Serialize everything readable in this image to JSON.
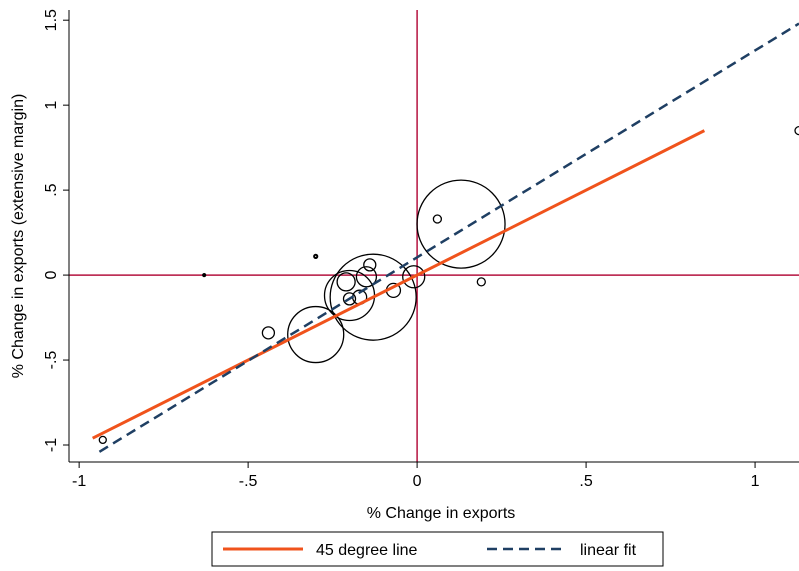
{
  "chart_data": {
    "type": "scatter",
    "xlabel": "% Change in exports",
    "ylabel": "% Change in exports (extensive margin)",
    "xlim": [
      -1.03,
      1.13
    ],
    "ylim": [
      -1.1,
      1.56
    ],
    "x_ticks": [
      {
        "value": -1,
        "label": "-1"
      },
      {
        "value": -0.5,
        "label": "-.5"
      },
      {
        "value": 0,
        "label": "0"
      },
      {
        "value": 0.5,
        "label": ".5"
      },
      {
        "value": 1,
        "label": "1"
      }
    ],
    "y_ticks": [
      {
        "value": -1,
        "label": "-1"
      },
      {
        "value": -0.5,
        "label": "-.5"
      },
      {
        "value": 0,
        "label": "0"
      },
      {
        "value": 0.5,
        "label": ".5"
      },
      {
        "value": 1,
        "label": "1"
      },
      {
        "value": 1.5,
        "label": "1.5"
      }
    ],
    "reference_lines": {
      "x": 0,
      "y": 0,
      "color": "#b5123f"
    },
    "points_note": "marker radius = relative weight (proportional circle size)",
    "points": [
      {
        "x": 0.13,
        "y": 0.3,
        "weight": 44
      },
      {
        "x": -0.13,
        "y": -0.13,
        "weight": 43
      },
      {
        "x": -0.3,
        "y": -0.35,
        "weight": 28
      },
      {
        "x": -0.2,
        "y": -0.12,
        "weight": 25
      },
      {
        "x": -0.21,
        "y": -0.04,
        "weight": 9
      },
      {
        "x": -0.15,
        "y": -0.01,
        "weight": 10
      },
      {
        "x": -0.14,
        "y": 0.06,
        "weight": 6
      },
      {
        "x": -0.17,
        "y": -0.13,
        "weight": 7
      },
      {
        "x": -0.2,
        "y": -0.14,
        "weight": 6
      },
      {
        "x": -0.07,
        "y": -0.09,
        "weight": 7
      },
      {
        "x": -0.01,
        "y": -0.01,
        "weight": 11
      },
      {
        "x": -0.44,
        "y": -0.34,
        "weight": 6
      },
      {
        "x": 0.06,
        "y": 0.33,
        "weight": 4
      },
      {
        "x": 0.19,
        "y": -0.04,
        "weight": 4
      },
      {
        "x": 1.13,
        "y": 0.85,
        "weight": 4
      },
      {
        "x": -0.93,
        "y": -0.97,
        "weight": 3.5
      },
      {
        "x": -0.3,
        "y": 0.11,
        "weight": 1.6
      },
      {
        "x": -0.63,
        "y": 0.0,
        "weight": 1.1
      }
    ],
    "series": [
      {
        "name": "45 degree line",
        "style": "solid",
        "color": "#f0531c",
        "x": [
          -0.96,
          0.85
        ],
        "y": [
          -0.96,
          0.85
        ]
      },
      {
        "name": "linear fit",
        "style": "dashed",
        "color": "#1f3f63",
        "x": [
          -0.94,
          1.13
        ],
        "y": [
          -1.04,
          1.48
        ]
      }
    ],
    "legend": {
      "position": "bottom"
    },
    "grid": false
  }
}
